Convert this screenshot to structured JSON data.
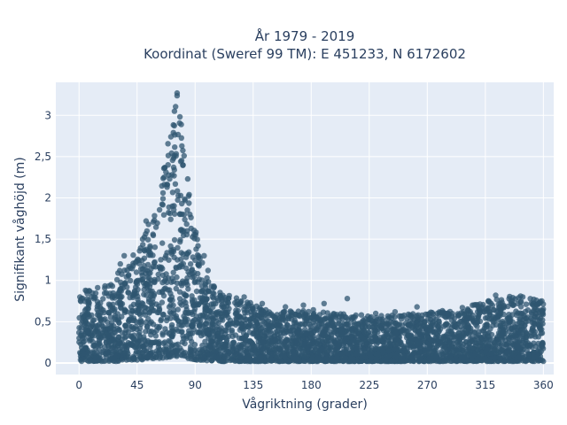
{
  "chart_data": {
    "type": "scatter",
    "title_line1": "År 1979 - 2019",
    "title_line2": "Koordinat (Sweref 99 TM): E 451233, N 6172602",
    "xlabel": "Vågriktning (grader)",
    "ylabel": "Signifikant våghöjd (m)",
    "xlim": [
      -18,
      368
    ],
    "ylim": [
      -0.14,
      3.4
    ],
    "x_ticks": [
      0,
      45,
      90,
      135,
      180,
      225,
      270,
      315,
      360
    ],
    "x_tick_labels": [
      "0",
      "45",
      "90",
      "135",
      "180",
      "225",
      "270",
      "315",
      "360"
    ],
    "y_ticks": [
      0,
      0.5,
      1,
      1.5,
      2,
      2.5,
      3
    ],
    "y_tick_labels": [
      "0",
      "0,5",
      "1",
      "1,5",
      "2",
      "2,5",
      "3"
    ],
    "grid": true,
    "legend": "none",
    "series": [
      {
        "color": "#2f5670",
        "envelope": {
          "x": [
            0,
            10,
            20,
            30,
            40,
            45,
            50,
            55,
            60,
            65,
            70,
            73,
            76,
            78,
            80,
            83,
            86,
            90,
            95,
            100,
            110,
            120,
            135,
            150,
            180,
            200,
            225,
            250,
            270,
            290,
            315,
            330,
            345,
            360
          ],
          "y_max": [
            0.85,
            0.9,
            0.95,
            1.1,
            1.25,
            1.4,
            1.55,
            1.75,
            2.0,
            2.35,
            2.8,
            3.1,
            3.27,
            3.2,
            2.9,
            2.4,
            2.0,
            1.7,
            1.25,
            1.0,
            0.85,
            0.8,
            0.72,
            0.62,
            0.65,
            0.6,
            0.58,
            0.58,
            0.62,
            0.65,
            0.75,
            0.8,
            0.82,
            0.75
          ],
          "y_min": [
            0.02,
            0.02,
            0.02,
            0.02,
            0.03,
            0.03,
            0.04,
            0.05,
            0.05,
            0.06,
            0.07,
            0.08,
            0.08,
            0.08,
            0.07,
            0.06,
            0.05,
            0.04,
            0.03,
            0.03,
            0.02,
            0.02,
            0.02,
            0.02,
            0.02,
            0.02,
            0.02,
            0.02,
            0.02,
            0.02,
            0.02,
            0.02,
            0.02,
            0.02
          ]
        },
        "outliers": [
          {
            "x": 76,
            "y": 3.27
          },
          {
            "x": 74,
            "y": 3.05
          },
          {
            "x": 69,
            "y": 2.4
          },
          {
            "x": 66,
            "y": 2.25
          },
          {
            "x": 52,
            "y": 1.72
          },
          {
            "x": 35,
            "y": 1.3
          },
          {
            "x": 32,
            "y": 1.2
          },
          {
            "x": 5,
            "y": 0.88
          },
          {
            "x": 100,
            "y": 1.12
          },
          {
            "x": 97,
            "y": 1.3
          },
          {
            "x": 128,
            "y": 0.8
          },
          {
            "x": 142,
            "y": 0.72
          },
          {
            "x": 160,
            "y": 0.68
          },
          {
            "x": 174,
            "y": 0.7
          },
          {
            "x": 190,
            "y": 0.72
          },
          {
            "x": 208,
            "y": 0.78
          },
          {
            "x": 230,
            "y": 0.6
          },
          {
            "x": 245,
            "y": 0.62
          },
          {
            "x": 262,
            "y": 0.68
          },
          {
            "x": 298,
            "y": 0.62
          },
          {
            "x": 305,
            "y": 0.7
          },
          {
            "x": 323,
            "y": 0.82
          },
          {
            "x": 335,
            "y": 0.72
          },
          {
            "x": 344,
            "y": 0.8
          },
          {
            "x": 356,
            "y": 0.72
          }
        ]
      }
    ]
  }
}
